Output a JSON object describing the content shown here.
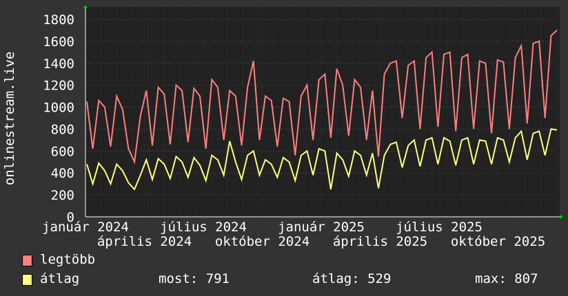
{
  "chart_data": {
    "type": "line",
    "ylabel": "onlinestream.live",
    "ylim": [
      0,
      1800
    ],
    "yticks": [
      0,
      200,
      400,
      600,
      800,
      1000,
      1200,
      1400,
      1600,
      1800
    ],
    "xtick_labels": [
      "január 2024",
      "április 2024",
      "július 2024",
      "október 2024",
      "január 2025",
      "április 2025",
      "július 2025",
      "október 2025"
    ],
    "grid": true,
    "legend_position": "bottom-left",
    "series": [
      {
        "name": "legtöbb",
        "color": "#ff7f7f",
        "values": [
          1050,
          620,
          1060,
          1000,
          640,
          1100,
          980,
          620,
          500,
          920,
          1150,
          650,
          1180,
          1120,
          660,
          1200,
          1150,
          680,
          1170,
          1100,
          620,
          1250,
          1180,
          700,
          1150,
          1100,
          650,
          1180,
          1420,
          700,
          1100,
          1060,
          640,
          1080,
          1050,
          560,
          1100,
          1200,
          700,
          1250,
          1300,
          720,
          1350,
          1200,
          740,
          1250,
          1180,
          700,
          1150,
          550,
          1300,
          1400,
          1420,
          900,
          1380,
          1420,
          800,
          1450,
          1500,
          820,
          1480,
          1500,
          780,
          1450,
          1480,
          800,
          1420,
          1400,
          760,
          1430,
          1410,
          800,
          1450,
          1560,
          850,
          1580,
          1600,
          900,
          1650,
          1700
        ]
      },
      {
        "name": "átlag",
        "color": "#ffff80",
        "values": [
          480,
          300,
          490,
          420,
          300,
          480,
          420,
          310,
          250,
          380,
          520,
          340,
          530,
          480,
          350,
          550,
          500,
          360,
          540,
          470,
          330,
          560,
          520,
          380,
          690,
          500,
          340,
          560,
          600,
          380,
          520,
          480,
          360,
          540,
          500,
          330,
          560,
          600,
          380,
          620,
          600,
          250,
          580,
          520,
          370,
          600,
          560,
          380,
          580,
          260,
          560,
          660,
          680,
          450,
          650,
          700,
          460,
          700,
          720,
          480,
          720,
          690,
          470,
          700,
          720,
          480,
          700,
          690,
          480,
          720,
          700,
          500,
          720,
          780,
          520,
          760,
          780,
          560,
          800,
          791
        ]
      }
    ],
    "stats": {
      "most_label": "most:",
      "most": "791",
      "avg_label": "átlag:",
      "avg": "529",
      "max_label": "max:",
      "max": "807"
    }
  }
}
